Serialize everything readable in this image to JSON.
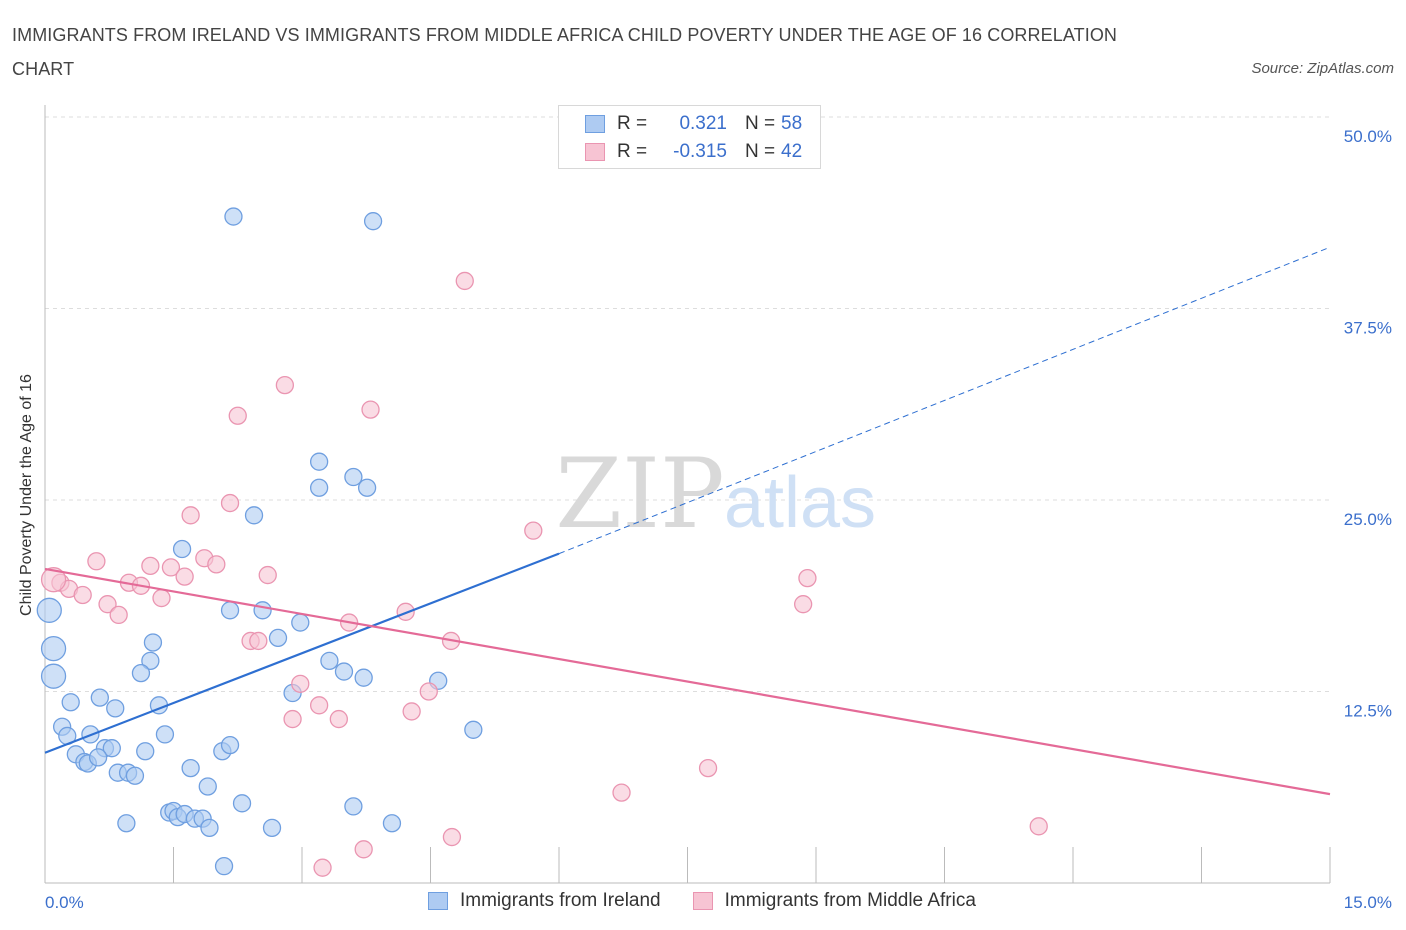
{
  "title": "IMMIGRANTS FROM IRELAND VS IMMIGRANTS FROM MIDDLE AFRICA CHILD POVERTY UNDER THE AGE OF 16 CORRELATION CHART",
  "source": "Source: ZipAtlas.com",
  "watermark": {
    "zip": "ZIP",
    "atlas": "atlas"
  },
  "legend": {
    "r_label": "R =",
    "n_label": "N =",
    "series": [
      {
        "r": "0.321",
        "n": "58"
      },
      {
        "r": "-0.315",
        "n": "42"
      }
    ]
  },
  "colors": {
    "blue_fill": "#aecbf2",
    "blue_stroke": "#6f9fe0",
    "blue_line": "#2e6fd1",
    "pink_fill": "#f7c4d3",
    "pink_stroke": "#ea95b1",
    "pink_line": "#e46a97",
    "axis_text": "#3b6fcc",
    "grid": "#dddddd"
  },
  "chart_data": {
    "type": "scatter",
    "title": "IMMIGRANTS FROM IRELAND VS IMMIGRANTS FROM MIDDLE AFRICA CHILD POVERTY UNDER THE AGE OF 16 CORRELATION CHART",
    "xlabel": "",
    "ylabel": "Child Poverty Under the Age of 16",
    "xlim": [
      0,
      15
    ],
    "ylim": [
      0,
      50
    ],
    "x_tick_labels": [
      "0.0%",
      "15.0%"
    ],
    "y_tick_labels": [
      "12.5%",
      "25.0%",
      "37.5%",
      "50.0%"
    ],
    "y_ticks": [
      12.5,
      25,
      37.5,
      50
    ],
    "grid": true,
    "legend_position": "top-center",
    "series": [
      {
        "name": "Immigrants from Ireland",
        "color": "blue",
        "trend": {
          "x": [
            0,
            6.0
          ],
          "y": [
            8.5,
            21.5
          ],
          "extend_dashed_to": [
            15.0,
            41.5
          ]
        },
        "points": [
          [
            2.2,
            43.5
          ],
          [
            3.83,
            43.2
          ],
          [
            3.2,
            27.5
          ],
          [
            3.6,
            26.5
          ],
          [
            3.2,
            25.8
          ],
          [
            3.76,
            25.8
          ],
          [
            2.44,
            24.0
          ],
          [
            1.6,
            21.8
          ],
          [
            0.05,
            17.8
          ],
          [
            0.1,
            15.3
          ],
          [
            0.1,
            13.5
          ],
          [
            2.16,
            17.8
          ],
          [
            2.54,
            17.8
          ],
          [
            2.98,
            17.0
          ],
          [
            2.72,
            16.0
          ],
          [
            1.26,
            15.7
          ],
          [
            1.23,
            14.5
          ],
          [
            1.12,
            13.7
          ],
          [
            3.32,
            14.5
          ],
          [
            3.49,
            13.8
          ],
          [
            3.72,
            13.4
          ],
          [
            4.59,
            13.2
          ],
          [
            2.89,
            12.4
          ],
          [
            0.64,
            12.1
          ],
          [
            0.3,
            11.8
          ],
          [
            0.82,
            11.4
          ],
          [
            1.33,
            11.6
          ],
          [
            0.2,
            10.2
          ],
          [
            0.26,
            9.6
          ],
          [
            0.53,
            9.7
          ],
          [
            1.4,
            9.7
          ],
          [
            0.7,
            8.8
          ],
          [
            0.78,
            8.8
          ],
          [
            1.17,
            8.6
          ],
          [
            2.07,
            8.6
          ],
          [
            2.16,
            9.0
          ],
          [
            0.36,
            8.4
          ],
          [
            0.46,
            7.9
          ],
          [
            0.5,
            7.8
          ],
          [
            0.62,
            8.2
          ],
          [
            1.7,
            7.5
          ],
          [
            0.85,
            7.2
          ],
          [
            0.97,
            7.2
          ],
          [
            1.05,
            7.0
          ],
          [
            1.9,
            6.3
          ],
          [
            2.3,
            5.2
          ],
          [
            3.6,
            5.0
          ],
          [
            1.45,
            4.6
          ],
          [
            1.5,
            4.7
          ],
          [
            1.55,
            4.3
          ],
          [
            1.63,
            4.5
          ],
          [
            1.75,
            4.2
          ],
          [
            1.84,
            4.2
          ],
          [
            1.92,
            3.6
          ],
          [
            0.95,
            3.9
          ],
          [
            2.65,
            3.6
          ],
          [
            4.05,
            3.9
          ],
          [
            2.09,
            1.1
          ],
          [
            5.0,
            10.0
          ]
        ]
      },
      {
        "name": "Immigrants from Middle Africa",
        "color": "pink",
        "trend": {
          "x": [
            0,
            15.0
          ],
          "y": [
            20.5,
            5.8
          ]
        },
        "points": [
          [
            4.9,
            39.3
          ],
          [
            2.8,
            32.5
          ],
          [
            2.25,
            30.5
          ],
          [
            3.8,
            30.9
          ],
          [
            5.7,
            23.0
          ],
          [
            2.16,
            24.8
          ],
          [
            1.7,
            24.0
          ],
          [
            0.6,
            21.0
          ],
          [
            1.23,
            20.7
          ],
          [
            1.47,
            20.6
          ],
          [
            1.86,
            21.2
          ],
          [
            2.0,
            20.8
          ],
          [
            0.18,
            19.6
          ],
          [
            0.28,
            19.2
          ],
          [
            0.44,
            18.8
          ],
          [
            0.98,
            19.6
          ],
          [
            1.12,
            19.4
          ],
          [
            1.63,
            20.0
          ],
          [
            2.6,
            20.1
          ],
          [
            1.36,
            18.6
          ],
          [
            0.73,
            18.2
          ],
          [
            0.86,
            17.5
          ],
          [
            8.9,
            19.9
          ],
          [
            8.85,
            18.2
          ],
          [
            4.21,
            17.7
          ],
          [
            3.55,
            17.0
          ],
          [
            4.74,
            15.8
          ],
          [
            2.4,
            15.8
          ],
          [
            2.49,
            15.8
          ],
          [
            2.98,
            13.0
          ],
          [
            4.48,
            12.5
          ],
          [
            3.2,
            11.6
          ],
          [
            2.89,
            10.7
          ],
          [
            3.43,
            10.7
          ],
          [
            4.28,
            11.2
          ],
          [
            7.74,
            7.5
          ],
          [
            6.73,
            5.9
          ],
          [
            11.6,
            3.7
          ],
          [
            4.75,
            3.0
          ],
          [
            3.72,
            2.2
          ],
          [
            3.24,
            1.0
          ],
          [
            0.1,
            19.8
          ]
        ]
      }
    ]
  },
  "bottom_legend": [
    "Immigrants from Ireland",
    "Immigrants from Middle Africa"
  ]
}
